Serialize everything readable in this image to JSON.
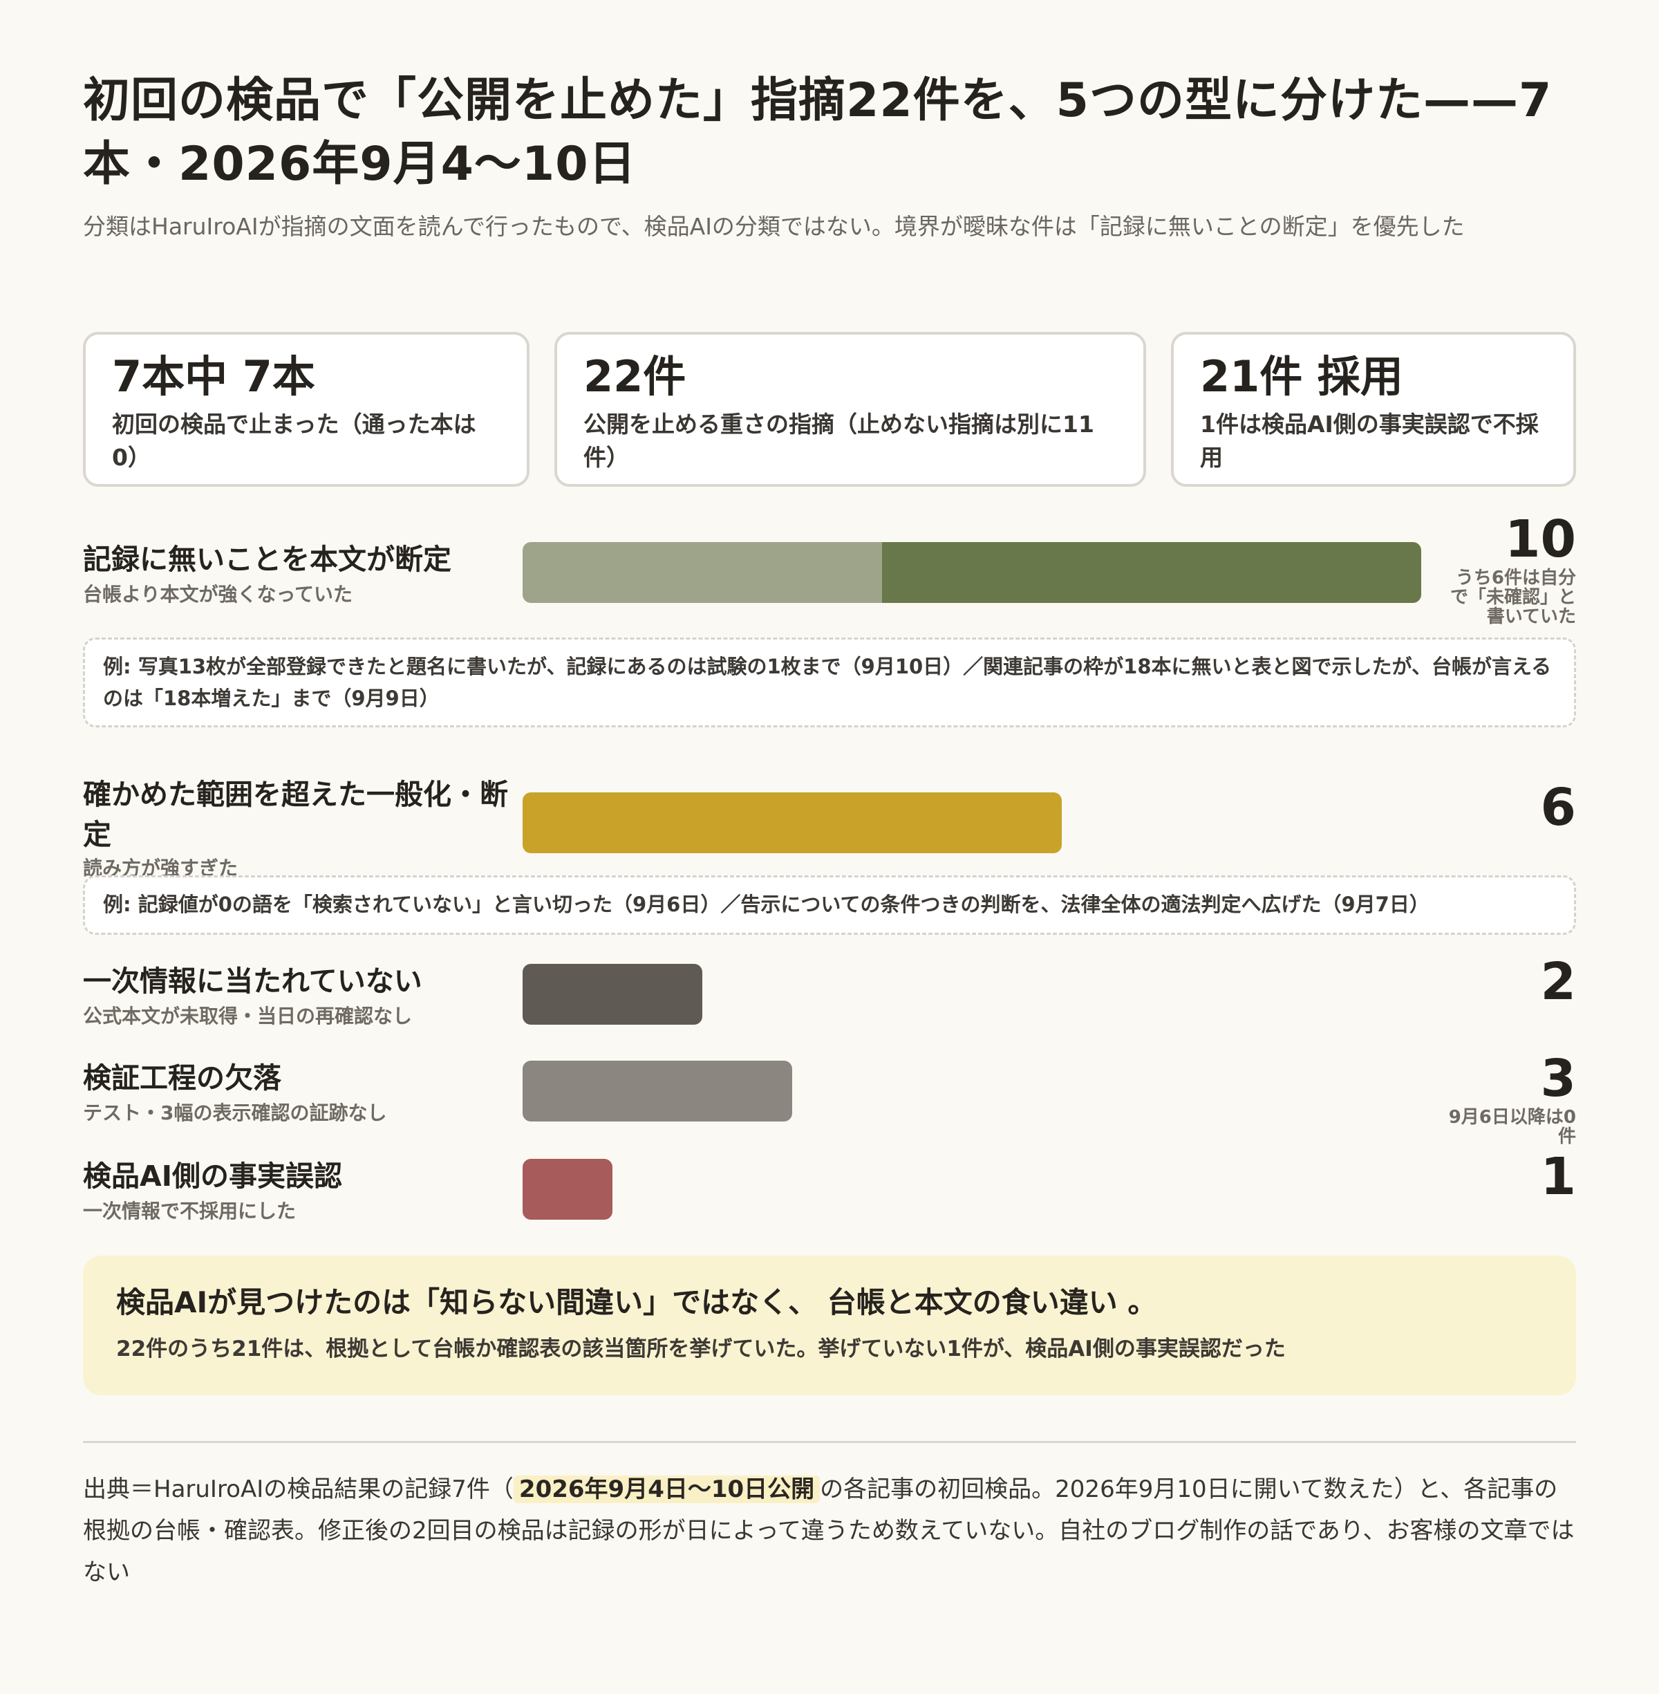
{
  "header": {
    "title": "初回の検品で「公開を止めた」指摘22件を、5つの型に分けた——7本・2026年9月4〜10日",
    "subtitle": "分類はHaruIroAIが指摘の文面を読んで行ったもので、検品AIの分類ではない。境界が曖昧な件は「記録に無いことの断定」を優先した"
  },
  "stats": [
    {
      "value": "7本中 7本",
      "label": "初回の検品で止まった（通った本は0）"
    },
    {
      "value": "22件",
      "label": "公開を止める重さの指摘（止めない指摘は別に11件）"
    },
    {
      "value": "21件 採用",
      "label": "1件は検品AI側の事実誤認で不採用"
    }
  ],
  "chart_data": {
    "type": "bar",
    "orientation": "horizontal",
    "xlim": [
      0,
      10
    ],
    "categories": [
      {
        "label": "記録に無いことを本文が断定",
        "sub": "台帳より本文が強くなっていた",
        "value": 10,
        "value_label": "10",
        "segments": [
          4,
          6
        ],
        "note": "うち6件は自分で「未確認」と書いていた",
        "example": "例: 写真13枚が全部登録できたと題名に書いたが、記録にあるのは試験の1枚まで（9月10日）／関連記事の枠が18本に無いと表と図で示したが、台帳が言えるのは「18本増えた」まで（9月9日）"
      },
      {
        "label": "確かめた範囲を超えた一般化・断定",
        "sub": "読み方が強すぎた",
        "value": 6,
        "value_label": "6",
        "segments": [
          6
        ],
        "note": "",
        "example": "例: 記録値が0の語を「検索されていない」と言い切った（9月6日）／告示についての条件つきの判断を、法律全体の適法判定へ広げた（9月7日）"
      },
      {
        "label": "一次情報に当たれていない",
        "sub": "公式本文が未取得・当日の再確認なし",
        "value": 2,
        "value_label": "2",
        "segments": [
          2
        ],
        "note": "",
        "example": ""
      },
      {
        "label": "検証工程の欠落",
        "sub": "テスト・3幅の表示確認の証跡なし",
        "value": 3,
        "value_label": "3",
        "segments": [
          3
        ],
        "note": "9月6日以降は0件",
        "example": ""
      },
      {
        "label": "検品AI側の事実誤認",
        "sub": "一次情報で不採用にした",
        "value": 1,
        "value_label": "1",
        "segments": [
          1
        ],
        "note": "",
        "example": ""
      }
    ],
    "colors": [
      [
        "#9da48a",
        "#69784a"
      ],
      [
        "#c9a22a"
      ],
      [
        "#5f5a54"
      ],
      [
        "#8b8680"
      ],
      [
        "#a85b5b"
      ]
    ]
  },
  "callout": {
    "head": "検品AIが見つけたのは「知らない間違い」ではなく、 台帳と本文の食い違い 。",
    "body": "22件のうち21件は、根拠として台帳か確認表の該当箇所を挙げていた。挙げていない1件が、検品AI側の事実誤認だった"
  },
  "source": {
    "pre": "出典＝HaruIroAIの検品結果の記録7件（",
    "highlight": "2026年9月4日〜10日公開",
    "post": "の各記事の初回検品。2026年9月10日に開いて数えた）と、各記事の根拠の台帳・確認表。修正後の2回目の検品は記録の形が日によって違うため数えていない。自社のブログ制作の話であり、お客様の文章ではない"
  }
}
